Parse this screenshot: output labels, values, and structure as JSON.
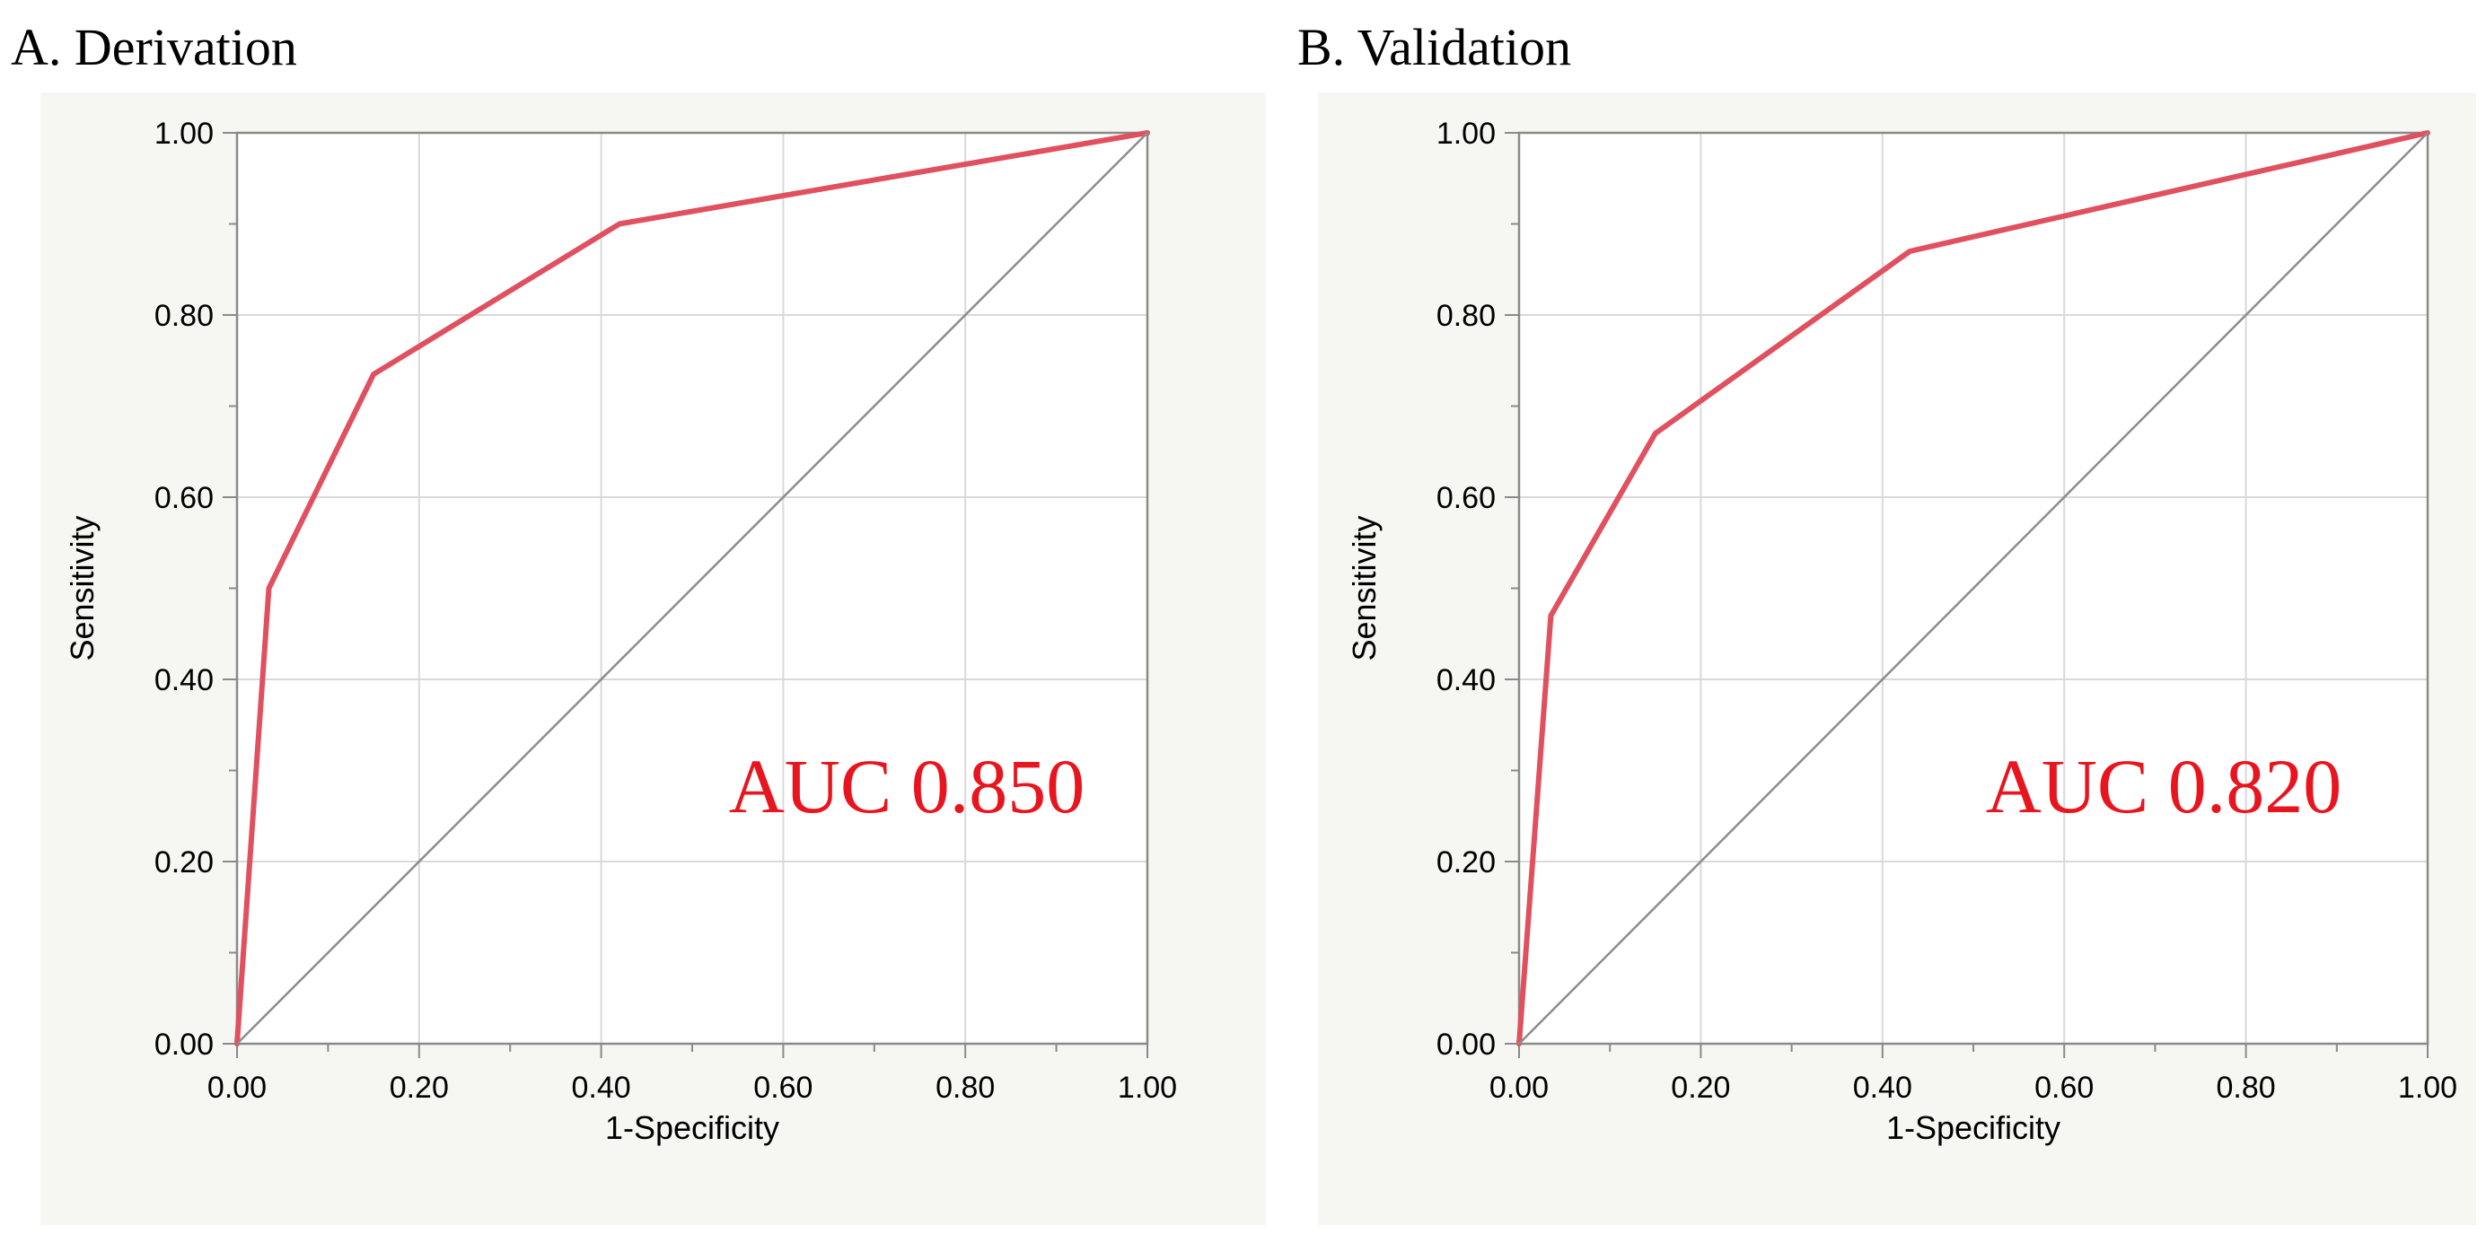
{
  "chart_data": [
    {
      "type": "line",
      "panel_title": "A. Derivation",
      "xlabel": "1-Specificity",
      "ylabel": "Sensitivity",
      "xlim": [
        0,
        1
      ],
      "ylim": [
        0,
        1
      ],
      "x_ticks": [
        "0.00",
        "0.20",
        "0.40",
        "0.60",
        "0.80",
        "1.00"
      ],
      "y_ticks": [
        "0.00",
        "0.20",
        "0.40",
        "0.60",
        "0.80",
        "1.00"
      ],
      "grid": true,
      "series": [
        {
          "name": "ROC",
          "x": [
            0.0,
            0.035,
            0.15,
            0.42,
            1.0
          ],
          "y": [
            0.0,
            0.5,
            0.735,
            0.9,
            1.0
          ],
          "color": "#e0505f"
        },
        {
          "name": "reference",
          "x": [
            0,
            1
          ],
          "y": [
            0,
            1
          ],
          "color": "#8c8c8c"
        }
      ],
      "annotation": "AUC 0.850",
      "annotation_color": "#e8141e"
    },
    {
      "type": "line",
      "panel_title": "B. Validation",
      "xlabel": "1-Specificity",
      "ylabel": "Sensitivity",
      "xlim": [
        0,
        1
      ],
      "ylim": [
        0,
        1
      ],
      "x_ticks": [
        "0.00",
        "0.20",
        "0.40",
        "0.60",
        "0.80",
        "1.00"
      ],
      "y_ticks": [
        "0.00",
        "0.20",
        "0.40",
        "0.60",
        "0.80",
        "1.00"
      ],
      "grid": true,
      "series": [
        {
          "name": "ROC",
          "x": [
            0.0,
            0.035,
            0.15,
            0.43,
            1.0
          ],
          "y": [
            0.0,
            0.47,
            0.67,
            0.87,
            1.0
          ],
          "color": "#e0505f"
        },
        {
          "name": "reference",
          "x": [
            0,
            1
          ],
          "y": [
            0,
            1
          ],
          "color": "#8c8c8c"
        }
      ],
      "annotation": "AUC 0.820",
      "annotation_color": "#e8141e"
    }
  ],
  "colors": {
    "panel_bg": "#f6f6f2",
    "plot_bg": "#ffffff",
    "grid": "#d9d9d9",
    "axis": "#8a8a8a",
    "text": "#000000"
  }
}
